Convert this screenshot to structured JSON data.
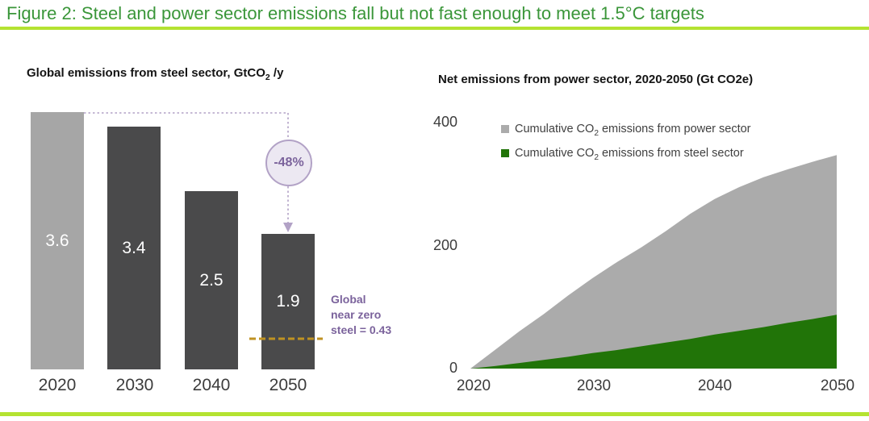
{
  "page": {
    "title": "Figure 2: Steel and power sector emissions fall but not fast enough to meet 1.5°C targets"
  },
  "colors": {
    "title_green": "#3a9639",
    "rule_green": "#b4e331",
    "bar_light": "#a6a6a6",
    "bar_dark": "#4a4a4b",
    "area_gray": "#ababab",
    "area_green": "#217408",
    "purple_text": "#7b639c",
    "purple_line": "#b2a2c6",
    "circle_fill": "#ece8f2",
    "target_line_orange": "#bf9222"
  },
  "chart_data": [
    {
      "type": "bar",
      "title": "Global emissions from steel sector, GtCO2 /y",
      "title_parts": {
        "prefix": "Global emissions from steel sector, GtCO",
        "sub": "2",
        "suffix": " /y"
      },
      "categories": [
        "2020",
        "2030",
        "2040",
        "2050"
      ],
      "values": [
        3.6,
        3.4,
        2.5,
        1.9
      ],
      "value_labels": [
        "3.6",
        "3.4",
        "2.5",
        "1.9"
      ],
      "ylim": [
        0,
        3.6
      ],
      "bar_colors": [
        "#a6a6a6",
        "#4a4a4b",
        "#4a4a4b",
        "#4a4a4b"
      ],
      "annotations": {
        "percent_change": "-48%",
        "near_zero_value": 0.43,
        "near_zero_label_lines": [
          "Global",
          "near zero",
          "steel = 0.43"
        ]
      }
    },
    {
      "type": "area",
      "title": "Net emissions from power sector, 2020-2050 (Gt CO2e)",
      "x": [
        2020,
        2022,
        2024,
        2026,
        2028,
        2030,
        2032,
        2034,
        2036,
        2038,
        2040,
        2042,
        2044,
        2046,
        2048,
        2050
      ],
      "series": [
        {
          "name": "Cumulative CO2 emissions from power sector",
          "color": "#ababab",
          "values": [
            0,
            30,
            60,
            88,
            118,
            146,
            172,
            196,
            222,
            250,
            274,
            293,
            309,
            322,
            334,
            345
          ]
        },
        {
          "name": "Cumulative CO2 emissions from steel sector",
          "color": "#217408",
          "values": [
            0,
            4,
            9,
            14,
            19,
            25,
            30,
            36,
            42,
            48,
            55,
            61,
            67,
            74,
            80,
            87
          ]
        }
      ],
      "legend": [
        {
          "prefix": "Cumulative CO",
          "sub": "2",
          "suffix": " emissions from power sector"
        },
        {
          "prefix": "Cumulative CO",
          "sub": "2",
          "suffix": " emissions from steel sector"
        }
      ],
      "ylim": [
        0,
        400
      ],
      "yticks": [
        0,
        200,
        400
      ],
      "ytick_labels": [
        "400",
        "200",
        "0"
      ],
      "xticks": [
        2020,
        2030,
        2040,
        2050
      ],
      "xtick_labels": [
        "2020",
        "2030",
        "2040",
        "2050"
      ],
      "grid": false,
      "legend_position": "top-inside"
    }
  ]
}
